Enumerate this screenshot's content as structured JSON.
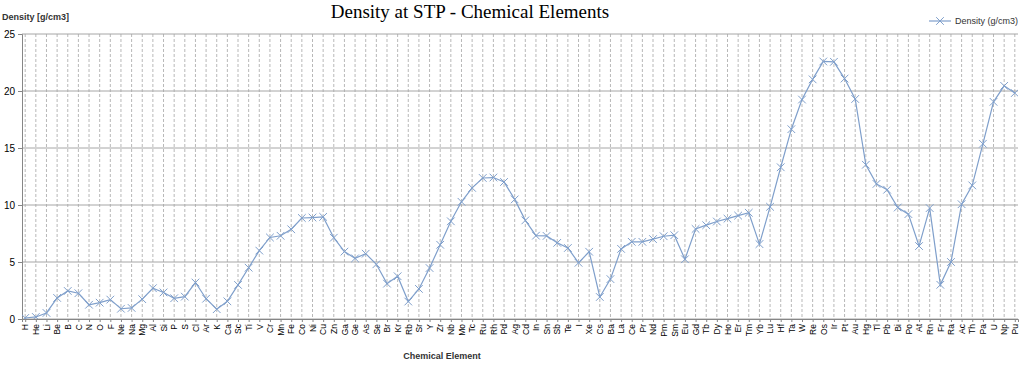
{
  "chart_data": {
    "type": "line",
    "title": "Density at STP - Chemical Elements",
    "x_label": "Chemical Element",
    "y_label": "Density [g/cm3]",
    "categories": [
      "H",
      "He",
      "Li",
      "Be",
      "B",
      "C",
      "N",
      "O",
      "F",
      "Ne",
      "Na",
      "Mg",
      "Al",
      "Si",
      "P",
      "S",
      "Cl",
      "Ar",
      "K",
      "Ca",
      "Sc",
      "Ti",
      "V",
      "Cr",
      "Mn",
      "Fe",
      "Co",
      "Ni",
      "Cu",
      "Zn",
      "Ga",
      "Ge",
      "As",
      "Se",
      "Br",
      "Kr",
      "Rb",
      "Sr",
      "Y",
      "Zr",
      "Nb",
      "Mo",
      "Tc",
      "Ru",
      "Rh",
      "Pd",
      "Ag",
      "Cd",
      "In",
      "Sn",
      "Sb",
      "Te",
      "I",
      "Xe",
      "Cs",
      "Ba",
      "La",
      "Ce",
      "Pr",
      "Nd",
      "Pm",
      "Sm",
      "Eu",
      "Gd",
      "Tb",
      "Dy",
      "Ho",
      "Er",
      "Tm",
      "Yb",
      "Lu",
      "Hf",
      "Ta",
      "W",
      "Re",
      "Os",
      "Ir",
      "Pt",
      "Au",
      "Hg",
      "Tl",
      "Pb",
      "Bi",
      "Po",
      "At",
      "Rn",
      "Fr",
      "Ra",
      "Ac",
      "Th",
      "Pa",
      "U",
      "Np",
      "Pu"
    ],
    "series": [
      {
        "name": "Density (g/cm3)",
        "color": "#7f9fcb",
        "marker": "x",
        "values": [
          0.09,
          0.18,
          0.53,
          1.85,
          2.46,
          2.26,
          1.25,
          1.43,
          1.7,
          0.9,
          0.97,
          1.74,
          2.7,
          2.33,
          1.82,
          1.96,
          3.2,
          1.78,
          0.86,
          1.55,
          2.99,
          4.5,
          6.0,
          7.15,
          7.3,
          7.87,
          8.86,
          8.9,
          8.96,
          7.13,
          5.91,
          5.32,
          5.73,
          4.8,
          3.1,
          3.75,
          1.53,
          2.64,
          4.47,
          6.51,
          8.57,
          10.28,
          11.5,
          12.37,
          12.41,
          12.02,
          10.49,
          8.65,
          7.31,
          7.29,
          6.68,
          6.23,
          4.93,
          5.9,
          1.93,
          3.5,
          6.15,
          6.77,
          6.77,
          7.01,
          7.26,
          7.35,
          5.24,
          7.9,
          8.23,
          8.55,
          8.8,
          9.07,
          9.32,
          6.57,
          9.84,
          13.31,
          16.65,
          19.25,
          21.02,
          22.59,
          22.56,
          21.09,
          19.3,
          13.53,
          11.85,
          11.34,
          9.78,
          9.2,
          6.4,
          9.73,
          3.0,
          5.0,
          10.07,
          11.72,
          15.37,
          19.05,
          20.45,
          19.82
        ]
      }
    ],
    "ylim": [
      0,
      25
    ],
    "yticks": [
      0,
      5,
      10,
      15,
      20,
      25
    ],
    "grid": true,
    "legend": "top-right"
  }
}
